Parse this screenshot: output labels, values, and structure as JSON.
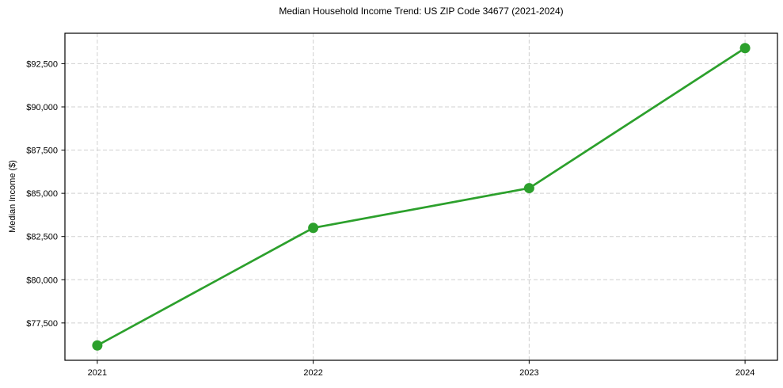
{
  "chart_data": {
    "type": "line",
    "title": "Median Household Income Trend: US ZIP Code 34677 (2021-2024)",
    "xlabel": "",
    "ylabel": "Median Income ($)",
    "x": [
      2021,
      2022,
      2023,
      2024
    ],
    "series": [
      {
        "name": "median-income",
        "values": [
          76200,
          83000,
          85300,
          93400
        ],
        "color": "#2ca02c",
        "marker": "circle",
        "marker_radius": 6.5,
        "line_width": 2.7
      }
    ],
    "xticks": [
      2021,
      2022,
      2023,
      2024
    ],
    "xtick_labels": [
      "2021",
      "2022",
      "2023",
      "2024"
    ],
    "yticks": [
      77500,
      80000,
      82500,
      85000,
      87500,
      90000,
      92500
    ],
    "ytick_labels": [
      "$77,500",
      "$80,000",
      "$82,500",
      "$85,000",
      "$87,500",
      "$90,000",
      "$92,500"
    ],
    "xlim": [
      2020.85,
      2024.15
    ],
    "ylim": [
      75340,
      94260
    ],
    "grid": true,
    "grid_style": "dashed",
    "grid_color": "#d0d0d0",
    "axis_color": "#000000",
    "background": "#ffffff",
    "legend_position": "none"
  }
}
